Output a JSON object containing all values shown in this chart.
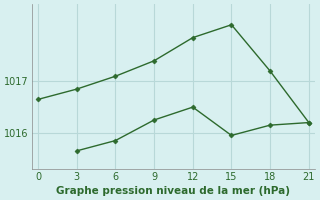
{
  "line1_x": [
    0,
    3,
    6,
    9,
    12,
    15,
    18,
    21
  ],
  "line1_y": [
    1016.65,
    1016.85,
    1017.1,
    1017.4,
    1017.85,
    1018.1,
    1017.2,
    1016.2
  ],
  "line2_x": [
    3,
    6,
    9,
    12,
    15,
    18,
    21
  ],
  "line2_y": [
    1015.65,
    1015.85,
    1016.25,
    1016.5,
    1015.95,
    1016.15,
    1016.2
  ],
  "line_color": "#2d6a2d",
  "bg_color": "#d8f0f0",
  "grid_color": "#b8d8d8",
  "xlabel": "Graphe pression niveau de la mer (hPa)",
  "xticks": [
    0,
    3,
    6,
    9,
    12,
    15,
    18,
    21
  ],
  "yticks": [
    1016,
    1017
  ],
  "xlim": [
    -0.5,
    21.5
  ],
  "ylim": [
    1015.3,
    1018.5
  ],
  "xlabel_color": "#2d6a2d",
  "xlabel_fontsize": 7.5,
  "tick_fontsize": 7
}
